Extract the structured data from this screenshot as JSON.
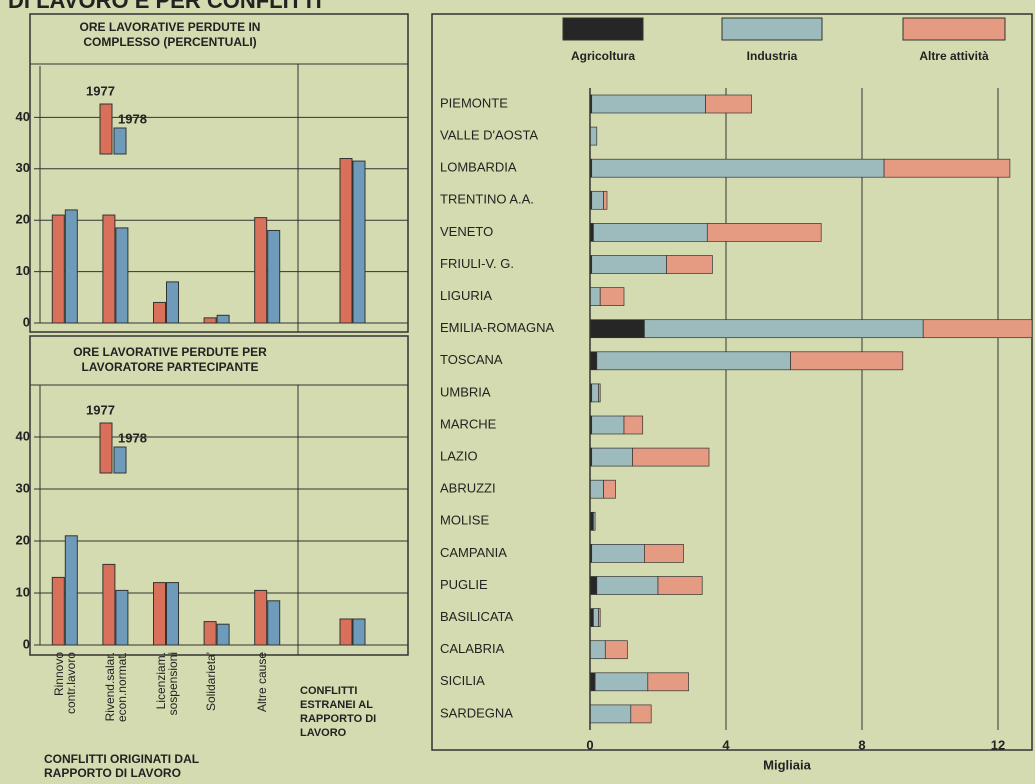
{
  "header": "DI LAVORO E PER CONFLITTI",
  "chart_data": [
    {
      "type": "bar",
      "title": "ORE LAVORATIVE PERDUTE IN COMPLESSO (PERCENTUALI)",
      "series": [
        {
          "name": "1977",
          "color": "#d9715a",
          "values": [
            21,
            21,
            4,
            1,
            20.5,
            32
          ]
        },
        {
          "name": "1978",
          "color": "#6f9bba",
          "values": [
            22,
            18.5,
            8,
            1.5,
            18,
            31.5
          ]
        }
      ],
      "ylim": [
        0,
        50
      ],
      "yticks": [
        0,
        10,
        20,
        30,
        40
      ],
      "grid": true
    },
    {
      "type": "bar",
      "title": "ORE LAVORATIVE PERDUTE PER LAVORATORE PARTECIPANTE",
      "categories": [
        "Rinnovo contr.lavoro",
        "Rivend.salar. econ.normat.",
        "Licenziam. sospensioni",
        "Solidarieta'",
        "Altre cause",
        "CONFLITTI ESTRANEI AL RAPPORTO DI LAVORO"
      ],
      "group_label": "CONFLITTI ORIGINATI DAL RAPPORTO DI LAVORO",
      "series": [
        {
          "name": "1977",
          "color": "#d9715a",
          "values": [
            13,
            15.5,
            12,
            4.5,
            10.5,
            5
          ]
        },
        {
          "name": "1978",
          "color": "#6f9bba",
          "values": [
            21,
            10.5,
            12,
            4,
            8.5,
            5
          ]
        }
      ],
      "ylim": [
        0,
        50
      ],
      "yticks": [
        0,
        10,
        20,
        30,
        40
      ],
      "grid": true
    },
    {
      "type": "hbar_stacked",
      "xlabel": "Migliaia",
      "categories": [
        "PIEMONTE",
        "VALLE D'AOSTA",
        "LOMBARDIA",
        "TRENTINO A.A.",
        "VENETO",
        "FRIULI-V. G.",
        "LIGURIA",
        "EMILIA-ROMAGNA",
        "TOSCANA",
        "UMBRIA",
        "MARCHE",
        "LAZIO",
        "ABRUZZI",
        "MOLISE",
        "CAMPANIA",
        "PUGLIE",
        "BASILICATA",
        "CALABRIA",
        "SICILIA",
        "SARDEGNA"
      ],
      "series": [
        {
          "name": "Agricoltura",
          "color": "#262626",
          "values": [
            0.05,
            0,
            0.05,
            0.05,
            0.1,
            0.05,
            0,
            1.6,
            0.2,
            0.05,
            0.05,
            0.05,
            0,
            0.1,
            0.05,
            0.2,
            0.1,
            0,
            0.15,
            0
          ]
        },
        {
          "name": "Industria",
          "color": "#9dbbbd",
          "values": [
            3.35,
            0.2,
            8.6,
            0.35,
            3.35,
            2.2,
            0.3,
            8.2,
            5.7,
            0.2,
            0.95,
            1.2,
            0.4,
            0.05,
            1.55,
            1.8,
            0.15,
            0.45,
            1.55,
            1.2
          ]
        },
        {
          "name": "Altre attività",
          "color": "#e59b82",
          "values": [
            1.35,
            0,
            3.7,
            0.1,
            3.35,
            1.35,
            0.7,
            3.2,
            3.3,
            0.05,
            0.55,
            2.25,
            0.35,
            0,
            1.15,
            1.3,
            0.05,
            0.65,
            1.2,
            0.6
          ]
        }
      ],
      "xlim": [
        0,
        13
      ],
      "xticks": [
        0,
        4,
        8,
        12
      ],
      "grid": true
    }
  ]
}
